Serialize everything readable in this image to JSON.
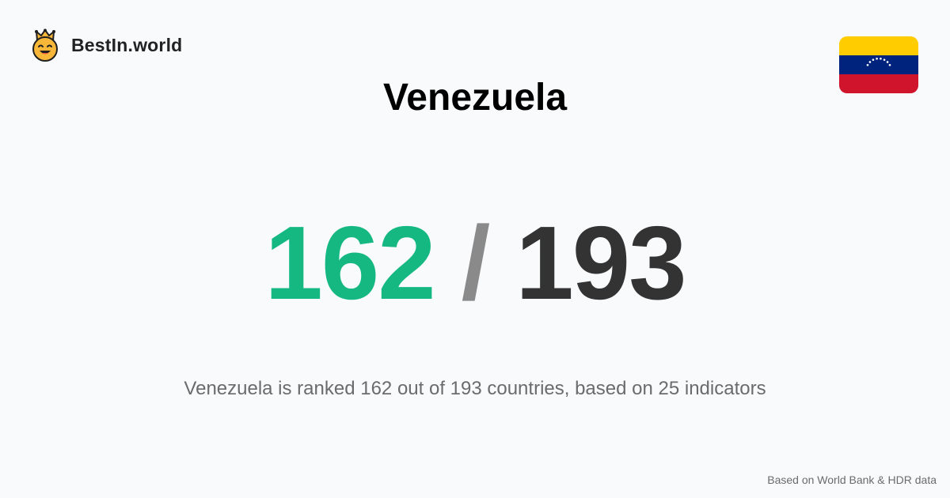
{
  "brand": {
    "name": "BestIn.world",
    "logo_icon": "crowned-smiley-icon",
    "logo_colors": {
      "face": "#f8b739",
      "crown": "#f8b739",
      "outline": "#1f1f1f"
    }
  },
  "country": {
    "name": "Venezuela",
    "flag_icon": "venezuela-flag-icon",
    "flag_colors": [
      "#ffcc00",
      "#00247d",
      "#cf142b"
    ]
  },
  "ranking": {
    "position": "162",
    "separator": "/",
    "total": "193",
    "position_color": "#16b882",
    "total_color": "#333333"
  },
  "summary": "Venezuela is ranked 162 out of 193 countries, based on 25 indicators",
  "footer": {
    "source": "Based on World Bank & HDR data"
  }
}
